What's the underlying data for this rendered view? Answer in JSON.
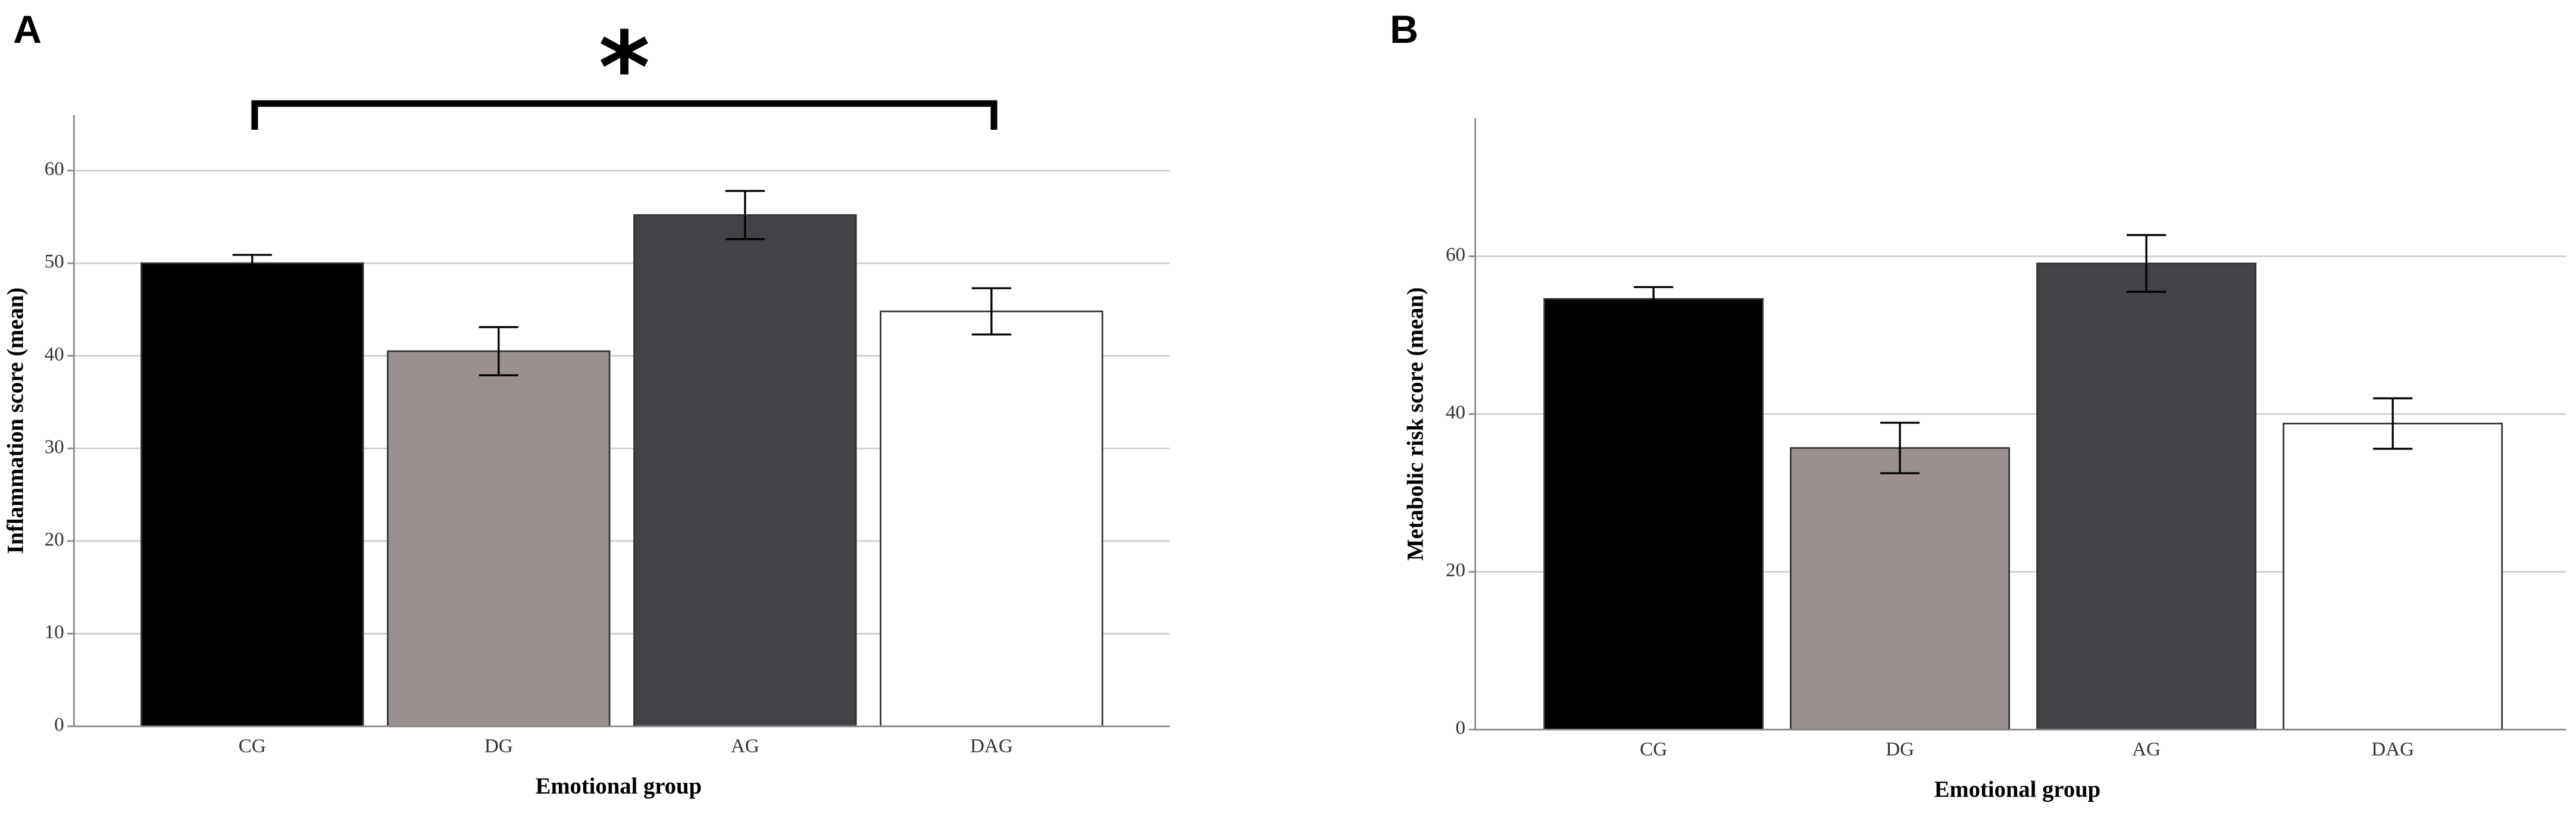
{
  "chart_data": [
    {
      "type": "bar",
      "panel_label": "A",
      "annotation": "*",
      "xlabel": "Emotional group",
      "ylabel": "Inflammation score (mean)",
      "categories": [
        "CG",
        "DG",
        "AG",
        "DAG"
      ],
      "values": [
        50,
        40.5,
        55.2,
        44.8
      ],
      "errors": [
        0.9,
        2.6,
        2.6,
        2.5
      ],
      "colors": [
        "#000000",
        "#9a9090",
        "#434347",
        "#ffffff"
      ],
      "ylim": [
        0,
        66
      ],
      "yticks": [
        0,
        10,
        20,
        30,
        40,
        50,
        60
      ],
      "grid": true
    },
    {
      "type": "bar",
      "panel_label": "B",
      "xlabel": "Emotional group",
      "ylabel": "Metabolic risk score (mean)",
      "categories": [
        "CG",
        "DG",
        "AG",
        "DAG"
      ],
      "values": [
        54.6,
        35.7,
        59.1,
        38.8
      ],
      "errors": [
        1.5,
        3.2,
        3.6,
        3.2
      ],
      "colors": [
        "#000000",
        "#9a9090",
        "#434347",
        "#ffffff"
      ],
      "ylim": [
        0,
        77.5
      ],
      "yticks": [
        0,
        20,
        40,
        60
      ],
      "grid": true
    }
  ]
}
